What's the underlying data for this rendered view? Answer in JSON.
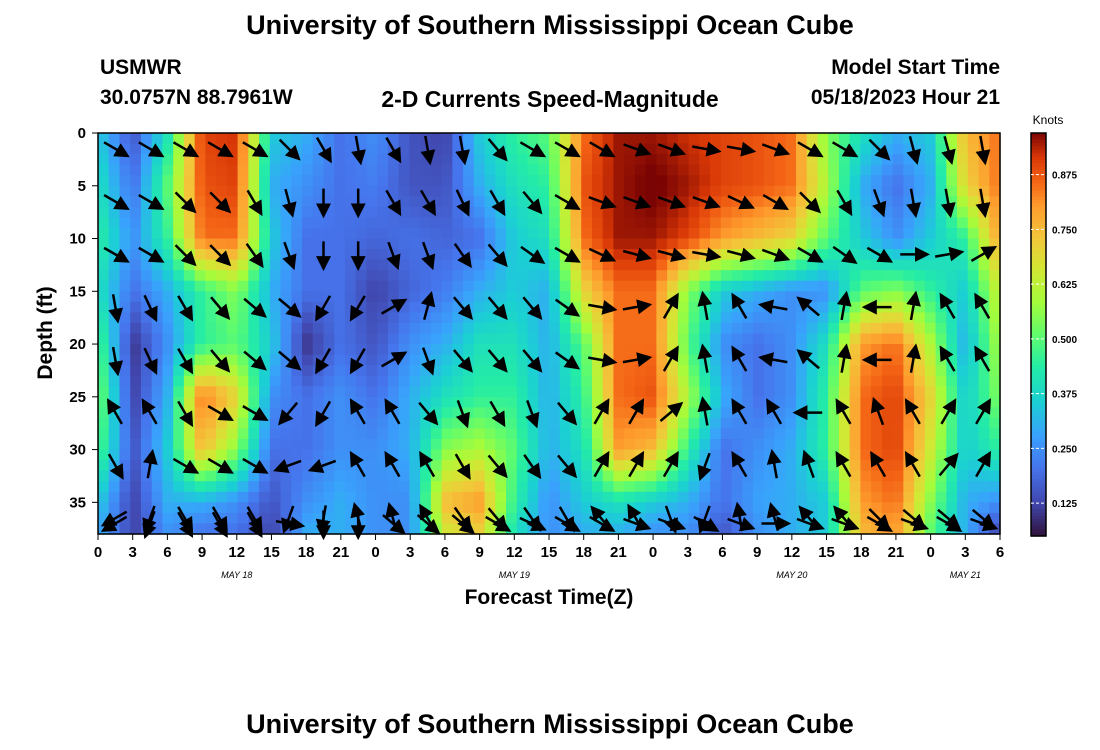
{
  "title": "University of Southern Mississippi Ocean Cube",
  "station": {
    "name": "USMWR",
    "coords": "30.0757N  88.7961W"
  },
  "plot_title": "2-D Currents Speed-Magnitude",
  "model_start": {
    "label": "Model Start Time",
    "value": "05/18/2023 Hour 21"
  },
  "footer_title": "University of Southern Mississippi Ocean Cube",
  "colors": {
    "arrow": "#000000",
    "background": "#ffffff"
  },
  "chart_data": {
    "type": "heatmap",
    "xlabel": "Forecast Time(Z)",
    "ylabel": "Depth (ft)",
    "x_tick_labels": [
      "0",
      "3",
      "6",
      "9",
      "12",
      "15",
      "18",
      "21",
      "0",
      "3",
      "6",
      "9",
      "12",
      "15",
      "18",
      "21",
      "0",
      "3",
      "6",
      "9",
      "12",
      "15",
      "18",
      "21",
      "0",
      "3",
      "6"
    ],
    "x_range_hours": [
      0,
      78
    ],
    "date_labels": [
      {
        "label": "MAY 18",
        "hour": 12
      },
      {
        "label": "MAY 19",
        "hour": 36
      },
      {
        "label": "MAY 20",
        "hour": 60
      },
      {
        "label": "MAY 21",
        "hour": 75
      }
    ],
    "y_ticks": [
      0,
      5,
      10,
      15,
      20,
      25,
      30,
      35
    ],
    "y_range": [
      0,
      38
    ],
    "y_inverted": true,
    "colorbar": {
      "unit": "Knots",
      "tick_labels": [
        "0.125",
        "0.250",
        "0.375",
        "0.500",
        "0.625",
        "0.750",
        "0.875"
      ],
      "ticks": [
        0.125,
        0.25,
        0.375,
        0.5,
        0.625,
        0.75,
        0.875
      ],
      "range": [
        0.05,
        0.97
      ],
      "colormap": "turbo"
    },
    "grid": {
      "columns_hours": [
        0,
        3,
        6,
        9,
        12,
        15,
        18,
        21,
        24,
        27,
        30,
        33,
        36,
        39,
        42,
        45,
        48,
        51,
        54,
        57,
        60,
        63,
        66,
        69,
        72,
        75,
        78
      ],
      "rows_depth": [
        0,
        5,
        10,
        15,
        20,
        25,
        30,
        35,
        38
      ],
      "speed_knots": [
        [
          0.35,
          0.15,
          0.4,
          0.9,
          0.92,
          0.35,
          0.3,
          0.2,
          0.25,
          0.15,
          0.12,
          0.35,
          0.45,
          0.5,
          0.85,
          0.95,
          0.95,
          0.92,
          0.9,
          0.88,
          0.85,
          0.55,
          0.4,
          0.3,
          0.35,
          0.75,
          0.85
        ],
        [
          0.4,
          0.2,
          0.5,
          0.88,
          0.9,
          0.3,
          0.25,
          0.2,
          0.22,
          0.15,
          0.15,
          0.3,
          0.4,
          0.45,
          0.88,
          0.95,
          0.98,
          0.95,
          0.9,
          0.88,
          0.85,
          0.6,
          0.3,
          0.2,
          0.3,
          0.7,
          0.85
        ],
        [
          0.45,
          0.25,
          0.45,
          0.85,
          0.85,
          0.35,
          0.2,
          0.2,
          0.18,
          0.2,
          0.18,
          0.2,
          0.35,
          0.4,
          0.85,
          0.95,
          0.95,
          0.9,
          0.8,
          0.75,
          0.7,
          0.5,
          0.35,
          0.25,
          0.35,
          0.45,
          0.8
        ],
        [
          0.4,
          0.2,
          0.3,
          0.45,
          0.55,
          0.3,
          0.2,
          0.2,
          0.12,
          0.18,
          0.22,
          0.3,
          0.35,
          0.3,
          0.7,
          0.85,
          0.85,
          0.55,
          0.35,
          0.3,
          0.25,
          0.25,
          0.5,
          0.55,
          0.45,
          0.35,
          0.65
        ],
        [
          0.5,
          0.1,
          0.25,
          0.45,
          0.5,
          0.35,
          0.1,
          0.2,
          0.15,
          0.25,
          0.3,
          0.4,
          0.4,
          0.3,
          0.5,
          0.85,
          0.85,
          0.5,
          0.25,
          0.2,
          0.25,
          0.4,
          0.8,
          0.85,
          0.6,
          0.3,
          0.6
        ],
        [
          0.55,
          0.12,
          0.3,
          0.85,
          0.7,
          0.25,
          0.2,
          0.25,
          0.2,
          0.3,
          0.4,
          0.45,
          0.45,
          0.3,
          0.45,
          0.85,
          0.88,
          0.6,
          0.3,
          0.2,
          0.25,
          0.45,
          0.85,
          0.9,
          0.7,
          0.35,
          0.55
        ],
        [
          0.5,
          0.15,
          0.35,
          0.75,
          0.55,
          0.2,
          0.2,
          0.25,
          0.25,
          0.3,
          0.55,
          0.6,
          0.5,
          0.3,
          0.4,
          0.8,
          0.75,
          0.45,
          0.2,
          0.25,
          0.3,
          0.45,
          0.85,
          0.9,
          0.65,
          0.35,
          0.45
        ],
        [
          0.35,
          0.12,
          0.3,
          0.3,
          0.25,
          0.15,
          0.25,
          0.3,
          0.25,
          0.25,
          0.75,
          0.8,
          0.45,
          0.25,
          0.35,
          0.4,
          0.35,
          0.3,
          0.2,
          0.28,
          0.3,
          0.35,
          0.8,
          0.85,
          0.55,
          0.3,
          0.25
        ],
        [
          0.3,
          0.12,
          0.25,
          0.2,
          0.2,
          0.12,
          0.3,
          0.3,
          0.25,
          0.25,
          0.65,
          0.7,
          0.4,
          0.25,
          0.3,
          0.3,
          0.25,
          0.25,
          0.15,
          0.25,
          0.3,
          0.35,
          0.75,
          0.8,
          0.5,
          0.3,
          0.1
        ]
      ],
      "direction_deg": [
        [
          120,
          120,
          120,
          120,
          120,
          135,
          150,
          170,
          150,
          170,
          170,
          140,
          120,
          120,
          120,
          110,
          110,
          100,
          100,
          110,
          120,
          120,
          135,
          165,
          165,
          170,
          170
        ],
        [
          120,
          120,
          135,
          135,
          150,
          165,
          180,
          180,
          150,
          150,
          155,
          150,
          140,
          120,
          110,
          110,
          110,
          110,
          115,
          120,
          135,
          150,
          160,
          170,
          170,
          170,
          170
        ],
        [
          120,
          120,
          135,
          135,
          145,
          160,
          180,
          180,
          160,
          160,
          145,
          140,
          125,
          120,
          115,
          105,
          105,
          100,
          105,
          110,
          120,
          125,
          120,
          90,
          80,
          60,
          60
        ],
        [
          170,
          155,
          150,
          140,
          130,
          130,
          210,
          210,
          60,
          15,
          140,
          140,
          140,
          125,
          100,
          80,
          30,
          350,
          330,
          280,
          310,
          10,
          270,
          10,
          330,
          330,
          330
        ],
        [
          170,
          155,
          150,
          140,
          130,
          130,
          210,
          210,
          60,
          160,
          140,
          140,
          140,
          125,
          100,
          80,
          30,
          350,
          330,
          280,
          310,
          10,
          270,
          10,
          330,
          330,
          330
        ],
        [
          330,
          330,
          150,
          120,
          120,
          220,
          210,
          330,
          330,
          140,
          160,
          150,
          160,
          140,
          30,
          30,
          50,
          350,
          330,
          330,
          270,
          330,
          340,
          330,
          30,
          30,
          30
        ],
        [
          150,
          10,
          120,
          120,
          120,
          250,
          250,
          330,
          330,
          330,
          150,
          140,
          145,
          140,
          30,
          30,
          30,
          200,
          330,
          350,
          340,
          330,
          330,
          330,
          40,
          30,
          30
        ],
        [
          240,
          200,
          150,
          150,
          150,
          200,
          190,
          345,
          345,
          330,
          145,
          140,
          145,
          150,
          320,
          330,
          160,
          200,
          350,
          345,
          320,
          320,
          135,
          130,
          130,
          130,
          200
        ],
        [
          240,
          200,
          150,
          150,
          150,
          100,
          180,
          180,
          130,
          130,
          130,
          120,
          115,
          120,
          120,
          110,
          110,
          120,
          110,
          90,
          110,
          110,
          120,
          110,
          120,
          110,
          200
        ]
      ]
    }
  }
}
